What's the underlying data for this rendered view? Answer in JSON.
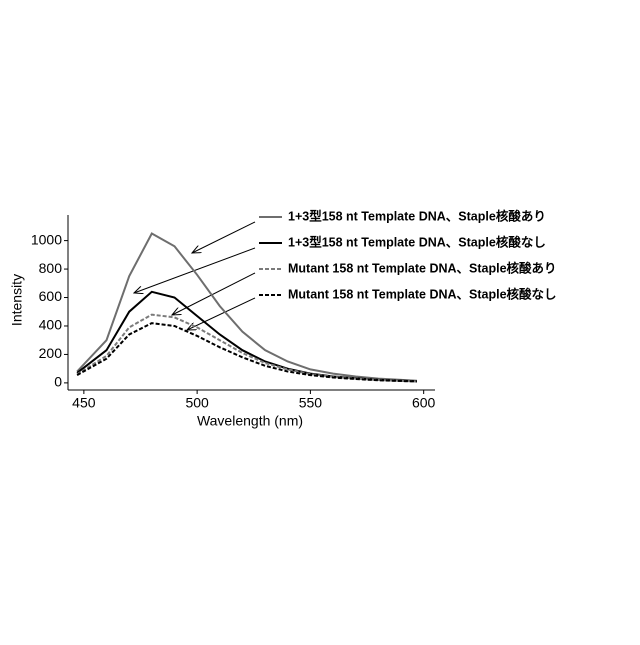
{
  "chart_data": {
    "type": "line",
    "x_label": "Wavelength (nm)",
    "y_label": "Intensity",
    "x": [
      447,
      460,
      470,
      480,
      490,
      500,
      510,
      520,
      530,
      540,
      550,
      560,
      570,
      580,
      597
    ],
    "series": [
      {
        "name": "1+3型158 nt Template DNA、Staple核酸あり",
        "color": "#6e6e6e",
        "dash": false,
        "values": [
          80,
          300,
          750,
          1050,
          960,
          760,
          540,
          360,
          230,
          150,
          95,
          65,
          45,
          30,
          15
        ]
      },
      {
        "name": "1+3型158 nt Template DNA、Staple核酸なし",
        "color": "#000000",
        "dash": false,
        "values": [
          70,
          230,
          500,
          640,
          600,
          470,
          340,
          230,
          150,
          100,
          65,
          45,
          32,
          22,
          12
        ]
      },
      {
        "name": "Mutant 158 nt Template DNA、Staple核酸あり",
        "color": "#7a7a7a",
        "dash": true,
        "values": [
          60,
          190,
          390,
          480,
          460,
          390,
          300,
          210,
          140,
          95,
          62,
          42,
          30,
          20,
          10
        ]
      },
      {
        "name": "Mutant 158 nt Template DNA、Staple核酸なし",
        "color": "#000000",
        "dash": true,
        "values": [
          55,
          170,
          340,
          420,
          400,
          330,
          250,
          180,
          120,
          80,
          55,
          38,
          27,
          18,
          10
        ]
      }
    ],
    "xlim": [
      443,
      605
    ],
    "ylim": [
      -50,
      1180
    ],
    "xticks": [
      450,
      500,
      550,
      600
    ],
    "yticks": [
      0,
      200,
      400,
      600,
      800,
      1000
    ]
  }
}
